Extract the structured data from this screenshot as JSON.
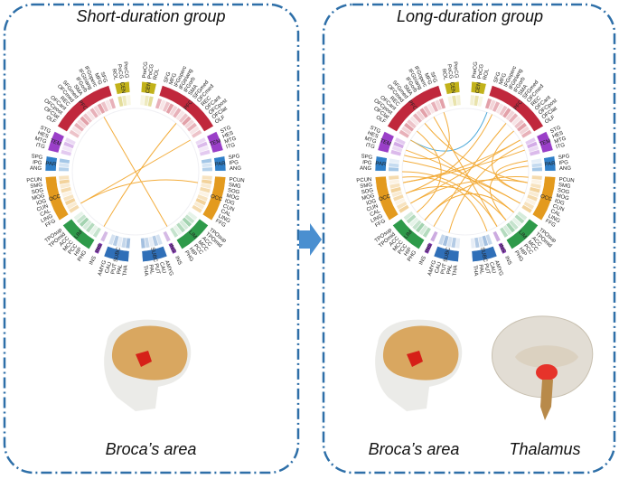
{
  "panels": [
    {
      "title": "Short-duration group",
      "captions": [
        "Broca’s area"
      ]
    },
    {
      "title": "Long-duration group",
      "captions": [
        "Broca’s area",
        "Thalamus"
      ]
    }
  ],
  "modules": [
    {
      "label": "CEN",
      "color": "#c2b21a",
      "regions": [
        "PreCG",
        "PoCG",
        "ROL"
      ]
    },
    {
      "label": "PFC",
      "color": "#c0283c",
      "regions": [
        "SFG",
        "MFG",
        "IFGoperc",
        "IFGtriang",
        "IFGorb",
        "SMA",
        "SFGmed",
        "OFCmed",
        "REC",
        "OFCant",
        "OFCpost",
        "OFClat",
        "OLF"
      ]
    },
    {
      "label": "TEM",
      "color": "#9a3fc8",
      "regions": [
        "STG",
        "HES",
        "MTG",
        "ITG"
      ]
    },
    {
      "label": "PAR",
      "color": "#2f7fc8",
      "regions": [
        "SPG",
        "IPG",
        "ANG"
      ]
    },
    {
      "label": "OCC",
      "color": "#e39a1e",
      "regions": [
        "PCUN",
        "SMG",
        "SOG",
        "MOG",
        "IOG",
        "CUN",
        "CAL",
        "LING",
        "FFG"
      ]
    },
    {
      "label": "LIM",
      "color": "#2e9a4a",
      "regions": [
        "TPOsup",
        "TPOmid",
        "ACC",
        "MCC",
        "PCC",
        "HIP",
        "PHG"
      ]
    },
    {
      "label": "INS",
      "color": "#8a3fb8",
      "regions": [
        "INS"
      ]
    },
    {
      "label": "SUBC",
      "color": "#2f6fb8",
      "regions": [
        "AMYG",
        "CAU",
        "PUT",
        "PAL",
        "THA"
      ]
    }
  ]
}
